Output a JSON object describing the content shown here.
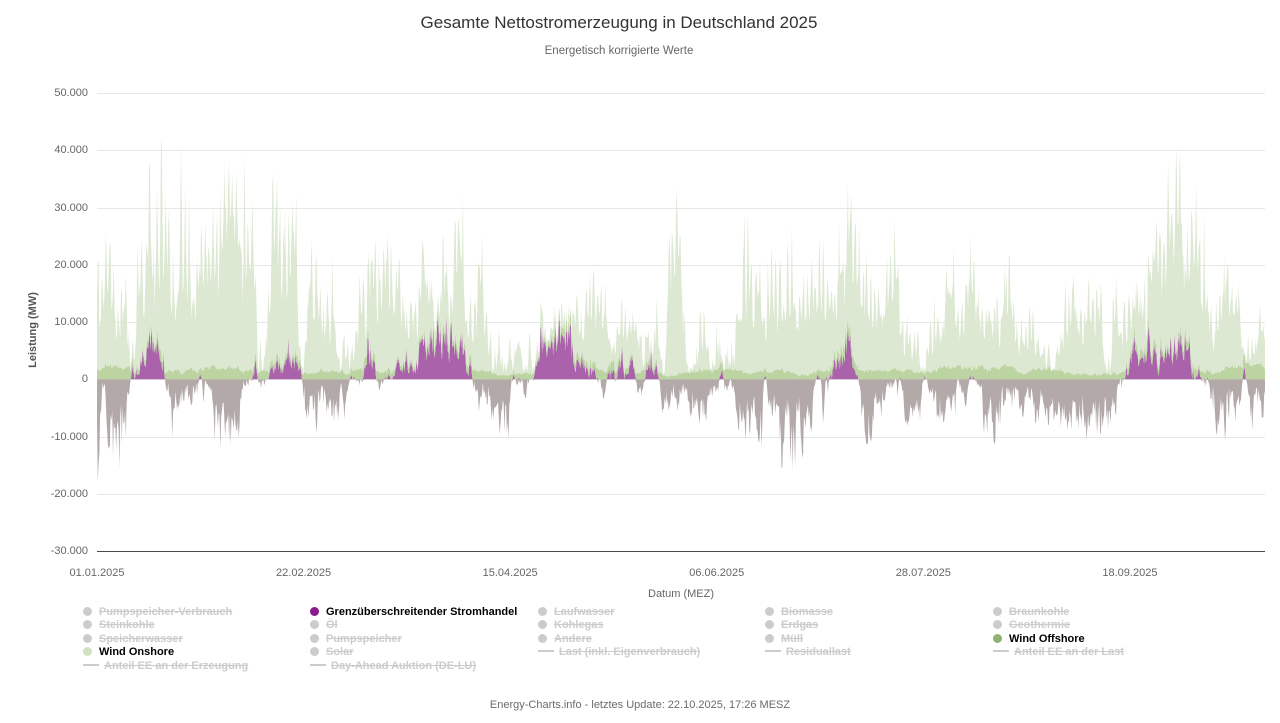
{
  "title": "Gesamte Nettostromerzeugung in Deutschland 2025",
  "subtitle": "Energetisch korrigierte Werte",
  "footer": "Energy-Charts.info - letztes Update: 22.10.2025, 17:26 MESZ",
  "axes": {
    "y_title": "Leistung (MW)",
    "x_title": "Datum (MEZ)",
    "y_ticks": [
      "50.000",
      "40.000",
      "30.000",
      "20.000",
      "10.000",
      "0",
      "-10.000",
      "-20.000",
      "-30.000"
    ],
    "x_ticks": [
      "01.01.2025",
      "22.02.2025",
      "15.04.2025",
      "06.06.2025",
      "28.07.2025",
      "18.09.2025"
    ]
  },
  "legend": {
    "disabled_color": "#cccccc",
    "columns": [
      {
        "items": [
          {
            "label": "Pumpspeicher-Verbrauch",
            "symbol": "dot",
            "enabled": false
          },
          {
            "label": "Steinkohle",
            "symbol": "dot",
            "enabled": false
          },
          {
            "label": "Speicherwasser",
            "symbol": "dot",
            "enabled": false
          },
          {
            "label": "Wind Onshore",
            "symbol": "dot",
            "enabled": true,
            "color": "#cfe3c0"
          },
          {
            "label": "Anteil EE an der Erzeugung",
            "symbol": "line",
            "enabled": false
          }
        ]
      },
      {
        "items": [
          {
            "label": "Grenzüberschreitender Stromhandel",
            "symbol": "dot",
            "enabled": true,
            "color": "#8b1a8b"
          },
          {
            "label": "Öl",
            "symbol": "dot",
            "enabled": false
          },
          {
            "label": "Pumpspeicher",
            "symbol": "dot",
            "enabled": false
          },
          {
            "label": "Solar",
            "symbol": "dot",
            "enabled": false
          },
          {
            "label": "Day-Ahead Auktion (DE-LU)",
            "symbol": "line",
            "enabled": false
          }
        ]
      },
      {
        "items": [
          {
            "label": "Laufwasser",
            "symbol": "dot",
            "enabled": false
          },
          {
            "label": "Kohlegas",
            "symbol": "dot",
            "enabled": false
          },
          {
            "label": "Andere",
            "symbol": "dot",
            "enabled": false
          },
          {
            "label": "Last (inkl. Eigenverbrauch)",
            "symbol": "line",
            "enabled": false
          }
        ]
      },
      {
        "items": [
          {
            "label": "Biomasse",
            "symbol": "dot",
            "enabled": false
          },
          {
            "label": "Erdgas",
            "symbol": "dot",
            "enabled": false
          },
          {
            "label": "Müll",
            "symbol": "dot",
            "enabled": false
          },
          {
            "label": "Residuallast",
            "symbol": "line",
            "enabled": false
          }
        ]
      },
      {
        "items": [
          {
            "label": "Braunkohle",
            "symbol": "dot",
            "enabled": false
          },
          {
            "label": "Geothermie",
            "symbol": "dot",
            "enabled": false
          },
          {
            "label": "Wind Offshore",
            "symbol": "dot",
            "enabled": true,
            "color": "#8fb272"
          },
          {
            "label": "Anteil EE an der Last",
            "symbol": "line",
            "enabled": false
          }
        ]
      }
    ]
  },
  "chart_data": {
    "type": "area",
    "stacked": true,
    "title": "Gesamte Nettostromerzeugung in Deutschland 2025",
    "subtitle": "Energetisch korrigierte Werte",
    "xlabel": "Datum (MEZ)",
    "ylabel": "Leistung (MW)",
    "ylim": [
      -30000,
      50000
    ],
    "y_tick_step": 10000,
    "x_start": "01.01.2025",
    "x_end": "22.10.2025",
    "x_tick_days": [
      0,
      52,
      104,
      156,
      208,
      260
    ],
    "total_days": 294,
    "resolution": "hourly",
    "grid": true,
    "legend_position": "bottom",
    "series": [
      {
        "name": "Grenzüberschreitender Stromhandel",
        "fill": "#a55aa5",
        "negative_fill": "#a69a9a",
        "approx_max": 14000,
        "approx_min": -19000
      },
      {
        "name": "Wind Offshore",
        "fill": "#bcd3a2",
        "approx_max": 4000,
        "approx_min": 0
      },
      {
        "name": "Wind Onshore",
        "fill": "#dce8d2",
        "approx_max": 44000,
        "approx_min": 0
      }
    ],
    "notable_values": {
      "max_total_mw": 44000,
      "max_import_mw": 14000,
      "max_export_mw": -19000
    },
    "envelopes": {
      "note": "biweekly peak envelopes (MW) estimated from the plot, Jan 1 - Oct 22 2025",
      "n_points": 1460,
      "seed": 20251022,
      "green_peak": [
        26000,
        37000,
        44000,
        37000,
        38000,
        31000,
        24000,
        30000,
        27000,
        25000,
        31000,
        35000,
        29000,
        37000,
        28000,
        32000,
        30000,
        26000,
        34000,
        37000,
        31000,
        38000
      ],
      "offshore_peak": [
        3000,
        3500,
        3000,
        2500,
        2500,
        2000,
        2500,
        2000,
        2000,
        2500,
        2000,
        2500,
        2000,
        2500,
        2000,
        2500,
        3000,
        2500,
        3000,
        3500,
        3000,
        3500
      ],
      "trade_import_peak": [
        9000,
        11000,
        10000,
        13000,
        9000,
        11000,
        10000,
        11000,
        9000,
        12000,
        11000,
        10000,
        12000,
        9000,
        11000,
        10000,
        12000,
        11000,
        10000,
        9000,
        12000,
        11000
      ],
      "trade_export_peak": [
        19000,
        15000,
        12000,
        10000,
        12000,
        9000,
        10000,
        14000,
        9000,
        12000,
        10000,
        9000,
        15000,
        18000,
        10000,
        9000,
        12000,
        9000,
        10000,
        12000,
        13000,
        10000
      ]
    }
  }
}
